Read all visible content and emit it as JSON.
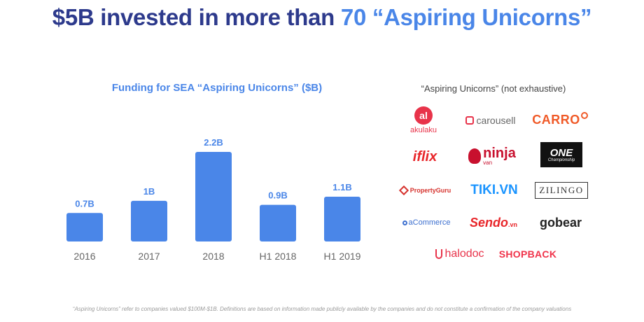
{
  "headline": {
    "prefix": "$5B invested in more than ",
    "accent": "70 “Aspiring Unicorns”"
  },
  "chart_data": {
    "type": "bar",
    "title": "Funding for SEA “Aspiring Unicorns” ($B)",
    "categories": [
      "2016",
      "2017",
      "2018",
      "H1 2018",
      "H1 2019"
    ],
    "values": [
      0.7,
      1.0,
      2.2,
      0.9,
      1.1
    ],
    "data_labels": [
      "0.7B",
      "1B",
      "2.2B",
      "0.9B",
      "1.1B"
    ],
    "xlabel": "",
    "ylabel": "",
    "ylim": [
      0,
      2.2
    ],
    "grid": false,
    "bar_color": "#4a86e8"
  },
  "logos": {
    "title": "“Aspiring Unicorns” (not exhaustive)",
    "items": [
      {
        "name": "akulaku",
        "mark": "al",
        "color": "#e8334a"
      },
      {
        "name": "carousell",
        "color": "#e8334a"
      },
      {
        "name": "CARRO",
        "color": "#f05a28"
      },
      {
        "name": "iflix",
        "color": "#e8262a"
      },
      {
        "name": "ninja",
        "sub": "van",
        "color": "#c8102e"
      },
      {
        "name": "ONE",
        "sub": "Championship",
        "color": "#ffffff",
        "bg": "#111111"
      },
      {
        "name": "PropertyGuru",
        "color": "#d6332e"
      },
      {
        "name": "TIKI.VN",
        "color": "#1a94ff"
      },
      {
        "name": "ZILINGO",
        "color": "#333333"
      },
      {
        "name": "aCommerce",
        "color": "#3c6fcf"
      },
      {
        "name": "Sendo",
        "sub": ".vn",
        "color": "#e8262a"
      },
      {
        "name": "gobear",
        "color": "#222222"
      },
      {
        "name": "halodoc",
        "color": "#e8334a"
      },
      {
        "name": "SHOPBACK",
        "color": "#f0334a"
      }
    ]
  },
  "footnote": "“Aspiring Unicorns” refer to companies valued $100M-$1B. Definitions are based on information made publicly available by the companies and do not constitute a confirmation of the company valuations"
}
